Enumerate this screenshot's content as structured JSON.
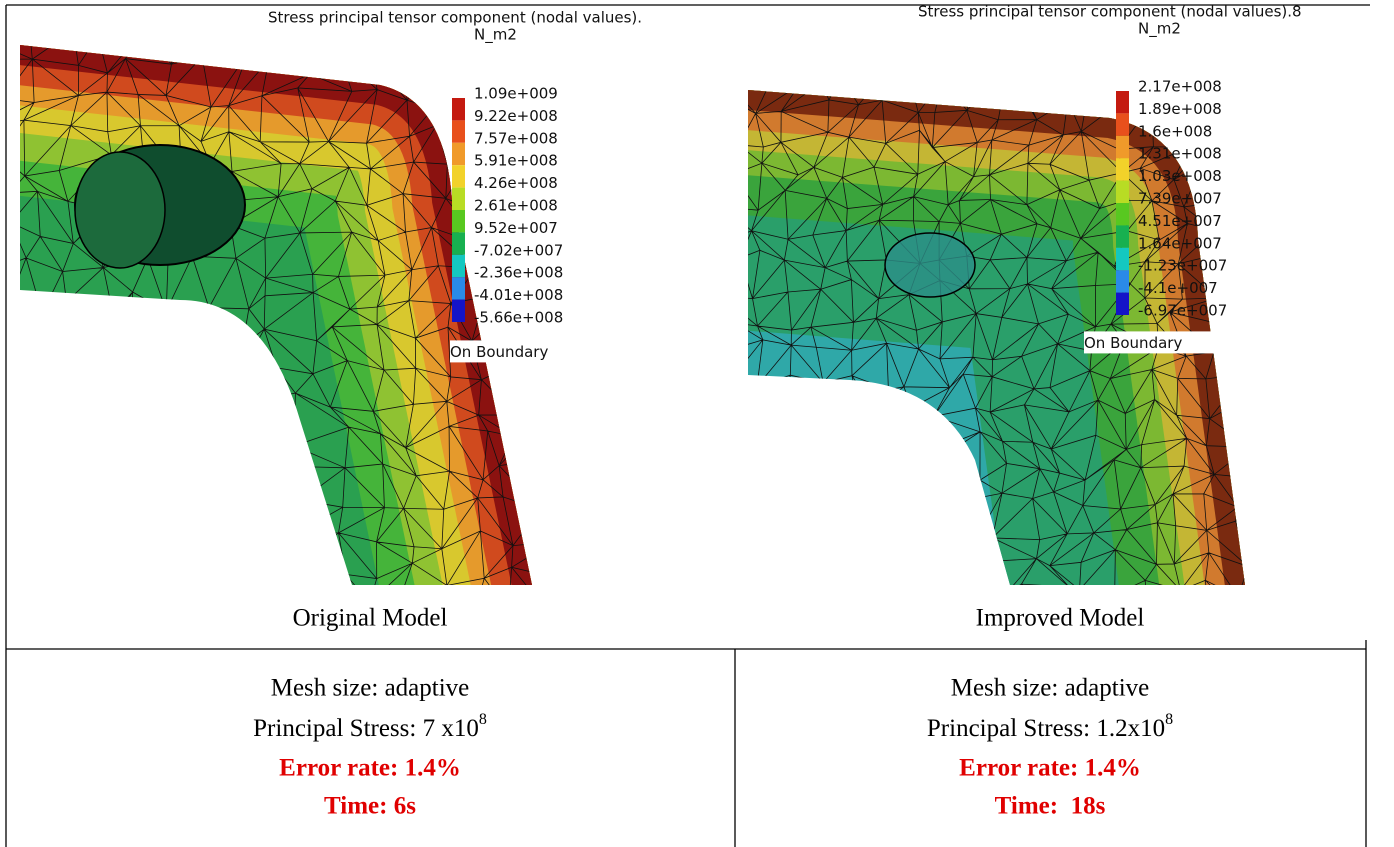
{
  "panels": [
    {
      "title": "Stress principal tensor component (nodal values).",
      "unit": "N_m2",
      "legend": [
        "1.09e+009",
        "9.22e+008",
        "7.57e+008",
        "5.91e+008",
        "4.26e+008",
        "2.61e+008",
        "9.52e+007",
        "-7.02e+007",
        "-2.36e+008",
        "-4.01e+008",
        "-5.66e+008"
      ],
      "boundary": "On Boundary",
      "caption": "Original Model"
    },
    {
      "title": "Stress principal tensor component (nodal values).8",
      "unit": "N_m2",
      "legend": [
        "2.17e+008",
        "1.89e+008",
        "1.6e+008",
        "1.31e+008",
        "1.03e+008",
        "7.39e+007",
        "4.51e+007",
        "1.64e+007",
        "-1.23e+007",
        "-4.1e+007",
        "-6.97e+007"
      ],
      "boundary": "On Boundary",
      "caption": "Improved Model"
    }
  ],
  "table": {
    "cells": [
      {
        "mesh": "Mesh size: adaptive",
        "stress": "Principal Stress: 7 x10",
        "exponent": "8",
        "error": "Error rate: 1.4%",
        "time": "Time: 6s"
      },
      {
        "mesh": "Mesh size: adaptive",
        "stress": "Principal Stress: 1.2x10",
        "exponent": "8",
        "error": "Error rate: 1.4%",
        "time": "Time:  18s"
      }
    ]
  }
}
